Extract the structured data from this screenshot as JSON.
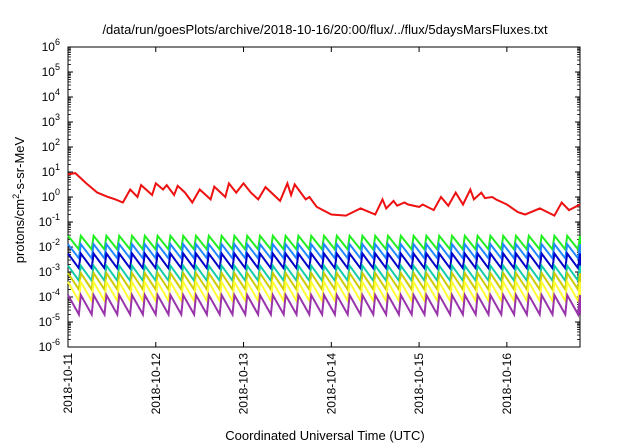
{
  "chart_data": {
    "type": "line",
    "title": "/data/run/goesPlots/archive/2018-10-16/20:00/flux/../flux/5daysMarsFluxes.txt",
    "xlabel": "Coordinated Universal Time (UTC)",
    "ylabel": "protons/cm2-s-sr-MeV",
    "ylabel_parts": {
      "base": "protons/cm",
      "sup": "2",
      "rest": "-s-sr-MeV"
    },
    "yscale": "log",
    "ylim": [
      1e-06,
      1000000.0
    ],
    "y_ticks": [
      {
        "base": "10",
        "exp": "-6"
      },
      {
        "base": "10",
        "exp": "-5"
      },
      {
        "base": "10",
        "exp": "-4"
      },
      {
        "base": "10",
        "exp": "-3"
      },
      {
        "base": "10",
        "exp": "-2"
      },
      {
        "base": "10",
        "exp": "-1"
      },
      {
        "base": "10",
        "exp": "0"
      },
      {
        "base": "10",
        "exp": "1"
      },
      {
        "base": "10",
        "exp": "2"
      },
      {
        "base": "10",
        "exp": "3"
      },
      {
        "base": "10",
        "exp": "4"
      },
      {
        "base": "10",
        "exp": "5"
      },
      {
        "base": "10",
        "exp": "6"
      }
    ],
    "xlim": [
      "2018-10-11T00:00",
      "2018-10-16T20:00"
    ],
    "x_ticks": [
      "2018-10-11",
      "2018-10-12",
      "2018-10-13",
      "2018-10-14",
      "2018-10-15",
      "2018-10-16"
    ],
    "grid": false,
    "legend": "none",
    "series": [
      {
        "color": "#ee1111",
        "style": "sawtooth-line",
        "x": [
          "2018-10-11T00:00",
          "2018-10-11T02:00",
          "2018-10-11T05:00",
          "2018-10-11T08:00",
          "2018-10-11T11:00",
          "2018-10-11T13:00",
          "2018-10-11T15:00",
          "2018-10-11T17:00",
          "2018-10-11T19:00",
          "2018-10-11T20:00",
          "2018-10-11T23:00",
          "2018-10-12T00:00",
          "2018-10-12T02:00",
          "2018-10-12T03:00",
          "2018-10-12T05:00",
          "2018-10-12T06:00",
          "2018-10-12T08:00",
          "2018-10-12T10:00",
          "2018-10-12T12:00",
          "2018-10-12T15:00",
          "2018-10-12T16:00",
          "2018-10-12T19:00",
          "2018-10-12T20:00",
          "2018-10-12T22:00",
          "2018-10-13T00:00",
          "2018-10-13T02:00",
          "2018-10-13T04:00",
          "2018-10-13T06:00",
          "2018-10-13T10:00",
          "2018-10-13T12:00",
          "2018-10-13T13:00",
          "2018-10-13T14:00",
          "2018-10-13T17:00",
          "2018-10-13T18:00",
          "2018-10-13T20:00",
          "2018-10-14T00:00",
          "2018-10-14T04:00",
          "2018-10-14T08:00",
          "2018-10-14T12:00",
          "2018-10-14T14:00",
          "2018-10-14T15:00",
          "2018-10-14T17:00",
          "2018-10-14T18:00",
          "2018-10-14T20:00",
          "2018-10-14T21:00",
          "2018-10-15T00:00",
          "2018-10-15T01:00",
          "2018-10-15T04:00",
          "2018-10-15T06:00",
          "2018-10-15T08:00",
          "2018-10-15T10:00",
          "2018-10-15T12:00",
          "2018-10-15T14:00",
          "2018-10-15T15:00",
          "2018-10-15T17:00",
          "2018-10-15T18:00",
          "2018-10-15T20:00",
          "2018-10-15T21:00",
          "2018-10-16T00:00",
          "2018-10-16T03:00",
          "2018-10-16T05:00",
          "2018-10-16T09:00",
          "2018-10-16T13:00",
          "2018-10-16T15:00",
          "2018-10-16T17:00",
          "2018-10-16T20:00"
        ],
        "y": [
          8,
          9,
          3.5,
          1.5,
          1,
          0.8,
          0.6,
          2,
          1,
          3,
          1.2,
          3.5,
          2,
          3,
          1.2,
          2.8,
          1.5,
          0.6,
          2,
          0.8,
          2.6,
          1,
          3.5,
          1.5,
          3.5,
          1.5,
          0.8,
          2.5,
          0.7,
          3.5,
          1.2,
          3.2,
          0.8,
          1,
          0.4,
          0.2,
          0.18,
          0.35,
          0.2,
          0.8,
          0.35,
          0.7,
          0.45,
          0.6,
          0.5,
          0.4,
          0.5,
          0.3,
          1,
          0.45,
          1.5,
          0.5,
          2,
          0.8,
          1.5,
          0.9,
          1,
          0.8,
          0.5,
          0.25,
          0.2,
          0.35,
          0.18,
          0.6,
          0.3,
          0.5
        ]
      },
      {
        "color": "#22ee22",
        "style": "sawtooth-band",
        "peak": 0.028,
        "trough": 0.008
      },
      {
        "color": "#2288ff",
        "style": "sawtooth-band",
        "peak": 0.013,
        "trough": 0.0035
      },
      {
        "color": "#0000cc",
        "style": "sawtooth-band",
        "peak": 0.0055,
        "trough": 0.0014
      },
      {
        "color": "#11ccaa",
        "style": "sawtooth-band",
        "peak": 0.0018,
        "trough": 0.00045
      },
      {
        "color": "#cccc00",
        "style": "sawtooth-band",
        "peak": 0.0009,
        "trough": 0.0002
      },
      {
        "color": "#ffff33",
        "style": "sawtooth-band",
        "peak": 0.0004,
        "trough": 7e-05
      },
      {
        "color": "#9933aa",
        "style": "sawtooth-band",
        "peak": 0.00012,
        "trough": 2e-05
      }
    ]
  }
}
